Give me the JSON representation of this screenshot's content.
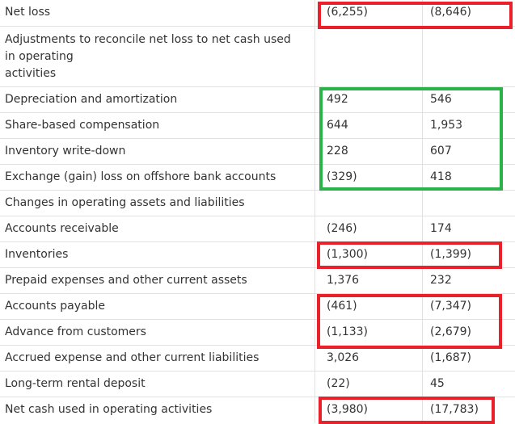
{
  "rows": [
    {
      "label": "Net loss",
      "v1": "(6,255)",
      "v2": "(8,646)"
    },
    {
      "label": "Adjustments to reconcile net loss to net cash used in operating activities",
      "label_lines": [
        "Adjustments to reconcile net loss to net cash used",
        "in operating",
        "activities"
      ],
      "v1": "",
      "v2": ""
    },
    {
      "label": "Depreciation and amortization",
      "v1": "492",
      "v2": "546"
    },
    {
      "label": "Share-based compensation",
      "v1": "644",
      "v2": "1,953"
    },
    {
      "label": "Inventory write-down",
      "v1": "228",
      "v2": "607"
    },
    {
      "label": "Exchange (gain) loss on offshore bank accounts",
      "v1": "(329)",
      "v2": "418"
    },
    {
      "label": "Changes in operating assets and liabilities",
      "v1": "",
      "v2": ""
    },
    {
      "label": "Accounts receivable",
      "v1": "(246)",
      "v2": "174"
    },
    {
      "label": "Inventories",
      "v1": "(1,300)",
      "v2": "(1,399)"
    },
    {
      "label": "Prepaid expenses and other current assets",
      "v1": "1,376",
      "v2": "232"
    },
    {
      "label": "Accounts payable",
      "v1": "(461)",
      "v2": "(7,347)"
    },
    {
      "label": "Advance from customers",
      "v1": "(1,133)",
      "v2": "(2,679)"
    },
    {
      "label": "Accrued expense and other current liabilities",
      "v1": "3,026",
      "v2": "(1,687)"
    },
    {
      "label": "Long-term rental deposit",
      "v1": "(22)",
      "v2": "45"
    },
    {
      "label": "Net cash used in operating activities",
      "v1": "(3,980)",
      "v2": "(17,783)"
    }
  ],
  "highlight_colors": {
    "red": "#e8212b",
    "green": "#2bb34a"
  }
}
